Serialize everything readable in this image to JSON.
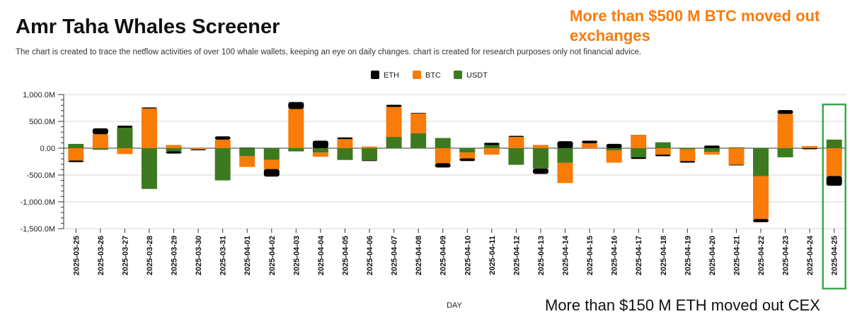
{
  "title": "Amr Taha Whales Screener",
  "subtitle": "The chart is created to trace the netflow activities of over 100 whale wallets, keeping an eye on daily changes.  chart is created for research purposes only not financial advice.",
  "annotations": {
    "top": "More than $500 M BTC moved out exchanges",
    "bottom": "More than $150 M ETH moved out CEX"
  },
  "colors": {
    "ETH": "#000000",
    "BTC": "#f97b08",
    "USDT": "#3d7a1f",
    "annotation": "#f97b08",
    "highlight": "#3aa84b"
  },
  "chart_data": {
    "type": "bar",
    "stacked": true,
    "xlabel": "DAY",
    "ylabel": "",
    "ylim": [
      -1500,
      1000
    ],
    "yticks": [
      1000,
      500,
      0,
      -500,
      -1000,
      -1500
    ],
    "ytick_labels": [
      "1,000.0M",
      "500.0M",
      "0.00",
      "-500.0M",
      "-1,000.0M",
      "-1,500.0M"
    ],
    "legend_position": "top-center",
    "grid": true,
    "highlighted_category": "2025-04-25",
    "categories": [
      "2025-03-25",
      "2025-03-26",
      "2025-03-27",
      "2025-03-28",
      "2025-03-29",
      "2025-03-30",
      "2025-03-31",
      "2025-04-01",
      "2025-04-02",
      "2025-04-03",
      "2025-04-04",
      "2025-04-05",
      "2025-04-06",
      "2025-04-07",
      "2025-04-08",
      "2025-04-09",
      "2025-04-10",
      "2025-04-11",
      "2025-04-12",
      "2025-04-13",
      "2025-04-14",
      "2025-04-15",
      "2025-04-16",
      "2025-04-17",
      "2025-04-18",
      "2025-04-19",
      "2025-04-20",
      "2025-04-21",
      "2025-04-22",
      "2025-04-23",
      "2025-04-24",
      "2025-04-25"
    ],
    "series": [
      {
        "name": "USDT",
        "values": [
          80,
          -30,
          380,
          -760,
          -60,
          0,
          -600,
          -150,
          -220,
          -60,
          -80,
          -220,
          -230,
          210,
          280,
          190,
          -80,
          60,
          -310,
          -380,
          -270,
          0,
          -40,
          -170,
          110,
          -20,
          -70,
          15,
          -520,
          -170,
          0,
          160
        ]
      },
      {
        "name": "BTC",
        "values": [
          -230,
          260,
          -110,
          740,
          60,
          -25,
          160,
          -200,
          -170,
          730,
          -80,
          170,
          30,
          560,
          370,
          -280,
          -110,
          -120,
          210,
          60,
          -380,
          90,
          -230,
          250,
          -120,
          -220,
          -50,
          -310,
          -800,
          640,
          40,
          -520
        ]
      },
      {
        "name": "ETH",
        "values": [
          -30,
          110,
          40,
          20,
          -40,
          -15,
          60,
          10,
          -140,
          130,
          140,
          30,
          -10,
          40,
          10,
          -80,
          -50,
          40,
          20,
          -100,
          130,
          50,
          80,
          -30,
          -30,
          -30,
          50,
          -10,
          -60,
          70,
          -20,
          -180
        ]
      }
    ]
  }
}
